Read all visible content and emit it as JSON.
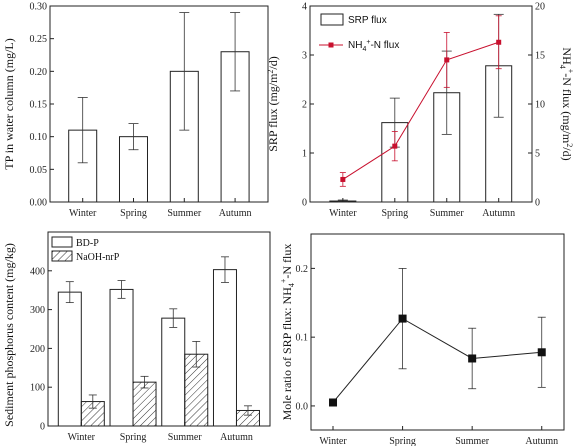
{
  "chart_data": [
    {
      "type": "bar",
      "panel": "top-left",
      "categories": [
        "Winter",
        "Spring",
        "Summer",
        "Autumn"
      ],
      "values": [
        0.11,
        0.1,
        0.2,
        0.23
      ],
      "errors": [
        0.05,
        0.02,
        0.09,
        0.06
      ],
      "ylabel": "TP in water column (mg/L)",
      "ylim": [
        0,
        0.3
      ],
      "yticks": [
        "0.00",
        "0.05",
        "0.10",
        "0.15",
        "0.20",
        "0.25",
        "0.30"
      ],
      "grid": false
    },
    {
      "type": "bar",
      "panel": "top-right",
      "categories": [
        "Winter",
        "Spring",
        "Summer",
        "Autumn"
      ],
      "series": [
        {
          "name": "SRP flux",
          "type": "bar",
          "axis": "left",
          "values": [
            0.02,
            1.62,
            2.23,
            2.78
          ],
          "errors": [
            0.02,
            0.5,
            0.85,
            1.05
          ]
        },
        {
          "name": "NH4+-N flux",
          "legend_label": "NH₄⁺-N flux",
          "type": "line",
          "axis": "right",
          "color": "#c8102e",
          "values": [
            2.3,
            5.7,
            14.5,
            16.3
          ],
          "errors": [
            0.7,
            1.5,
            2.8,
            2.7
          ]
        }
      ],
      "ylabel": "SRP flux (mg/m²/d)",
      "y2label": "NH₄⁺-N flux (mg/m²/d)",
      "ylim": [
        0,
        4
      ],
      "y2lim": [
        0,
        20
      ],
      "yticks": [
        "0",
        "1",
        "2",
        "3",
        "4"
      ],
      "y2ticks": [
        "0",
        "5",
        "10",
        "15",
        "20"
      ],
      "legend_position": "top-left",
      "grid": false
    },
    {
      "type": "bar",
      "panel": "bottom-left",
      "categories": [
        "Winter",
        "Spring",
        "Summer",
        "Autumn"
      ],
      "series": [
        {
          "name": "BD-P",
          "fill": "open",
          "values": [
            345,
            352,
            278,
            403
          ],
          "errors": [
            27,
            23,
            24,
            33
          ]
        },
        {
          "name": "NaOH-nrP",
          "fill": "hatched",
          "values": [
            63,
            113,
            185,
            40
          ],
          "errors": [
            17,
            15,
            33,
            12
          ]
        }
      ],
      "ylabel": "Sediment phosphorus content (mg/kg)",
      "ylim": [
        0,
        500
      ],
      "yticks": [
        "0",
        "100",
        "200",
        "300",
        "400"
      ],
      "legend_position": "top-left",
      "grid": false
    },
    {
      "type": "line",
      "panel": "bottom-right",
      "categories": [
        "Winter",
        "Spring",
        "Summer",
        "Autumn"
      ],
      "values": [
        0.005,
        0.127,
        0.069,
        0.078
      ],
      "errors": [
        0.0,
        0.073,
        0.044,
        0.051
      ],
      "ylabel": "Mole ratio of SRP flux: NH₄⁺-N flux",
      "ylim": [
        -0.035,
        0.25
      ],
      "yticks": [
        "0.0",
        "0.1",
        "0.2"
      ],
      "marker": "square",
      "grid": false
    }
  ]
}
